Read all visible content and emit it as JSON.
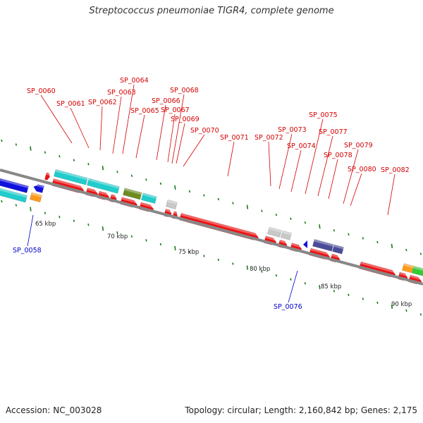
{
  "title": "Streptococcus pneumoniae TIGR4, complete genome",
  "accession_text": "Accession: NC_003028",
  "summary_text": "Topology: circular; Length: 2,160,842 bp; Genes: 2,175",
  "colors": {
    "backbone": "#888888",
    "forward_label": "#d40000",
    "reverse_label": "#0000cc",
    "tick": "#1a7a1a",
    "red": "#ee1111",
    "cyan": "#22cccc",
    "olive": "#6e8b22",
    "grey": "#c8c8c8",
    "purple": "#4b4b99",
    "blue": "#1111dd",
    "orange": "#ff9a1a",
    "green": "#33cc33"
  },
  "scale_labels": [
    "65 kbp",
    "70 kbp",
    "75 kbp",
    "80 kbp",
    "85 kbp",
    "90 kbp"
  ],
  "forward_gene_labels": [
    "SP_0060",
    "SP_0061",
    "SP_0062",
    "SP_0063",
    "SP_0064",
    "SP_0065",
    "SP_0066",
    "SP_0067",
    "SP_0068",
    "SP_0069",
    "SP_0070",
    "SP_0071",
    "SP_0072",
    "SP_0073",
    "SP_0074",
    "SP_0075",
    "SP_0077",
    "SP_0078",
    "SP_0079",
    "SP_0080",
    "SP_0082"
  ],
  "reverse_gene_labels": [
    "SP_0058",
    "SP_0076"
  ]
}
